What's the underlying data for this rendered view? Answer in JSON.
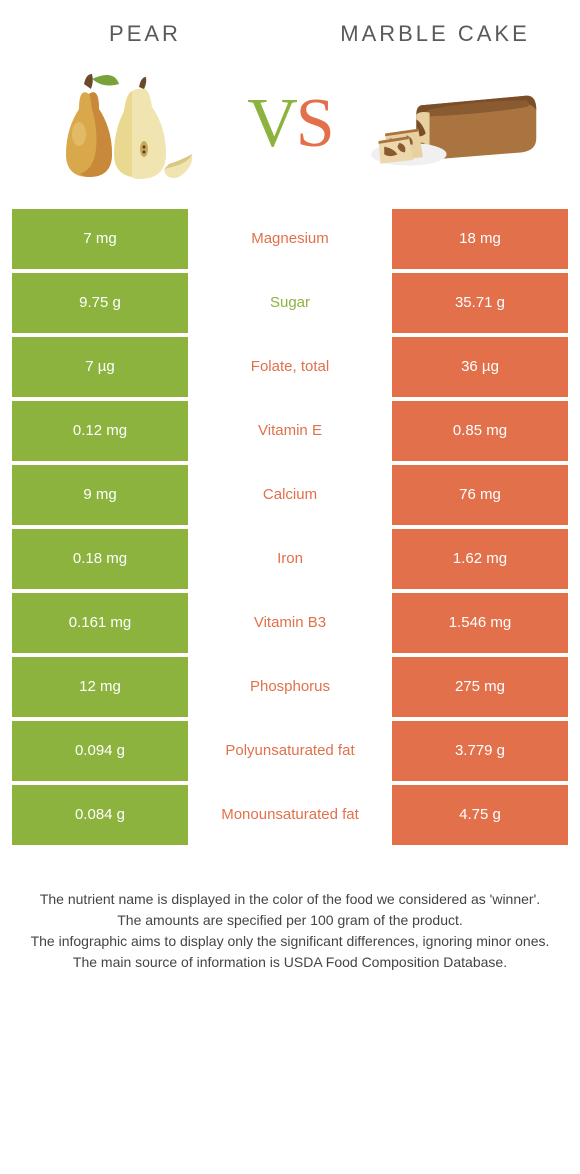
{
  "header": {
    "left_title": "Pear",
    "right_title": "Marble cake",
    "vs_v": "V",
    "vs_s": "S"
  },
  "colors": {
    "left": "#8cb33e",
    "right": "#e2704b",
    "text_dark": "#5a5a5a",
    "background": "#ffffff"
  },
  "table": {
    "rows": [
      {
        "left": "7 mg",
        "label": "Magnesium",
        "right": "18 mg",
        "winner": "right"
      },
      {
        "left": "9.75 g",
        "label": "Sugar",
        "right": "35.71 g",
        "winner": "left"
      },
      {
        "left": "7 µg",
        "label": "Folate, total",
        "right": "36 µg",
        "winner": "right"
      },
      {
        "left": "0.12 mg",
        "label": "Vitamin E",
        "right": "0.85 mg",
        "winner": "right"
      },
      {
        "left": "9 mg",
        "label": "Calcium",
        "right": "76 mg",
        "winner": "right"
      },
      {
        "left": "0.18 mg",
        "label": "Iron",
        "right": "1.62 mg",
        "winner": "right"
      },
      {
        "left": "0.161 mg",
        "label": "Vitamin B3",
        "right": "1.546 mg",
        "winner": "right"
      },
      {
        "left": "12 mg",
        "label": "Phosphorus",
        "right": "275 mg",
        "winner": "right"
      },
      {
        "left": "0.094 g",
        "label": "Polyunsaturated fat",
        "right": "3.779 g",
        "winner": "right"
      },
      {
        "left": "0.084 g",
        "label": "Monounsaturated fat",
        "right": "4.75 g",
        "winner": "right"
      }
    ]
  },
  "footer": {
    "line1": "The nutrient name is displayed in the color of the food we considered as 'winner'.",
    "line2": "The amounts are specified per 100 gram of the product.",
    "line3": "The infographic aims to display only the significant differences, ignoring minor ones.",
    "line4": "The main source of information is USDA Food Composition Database."
  }
}
